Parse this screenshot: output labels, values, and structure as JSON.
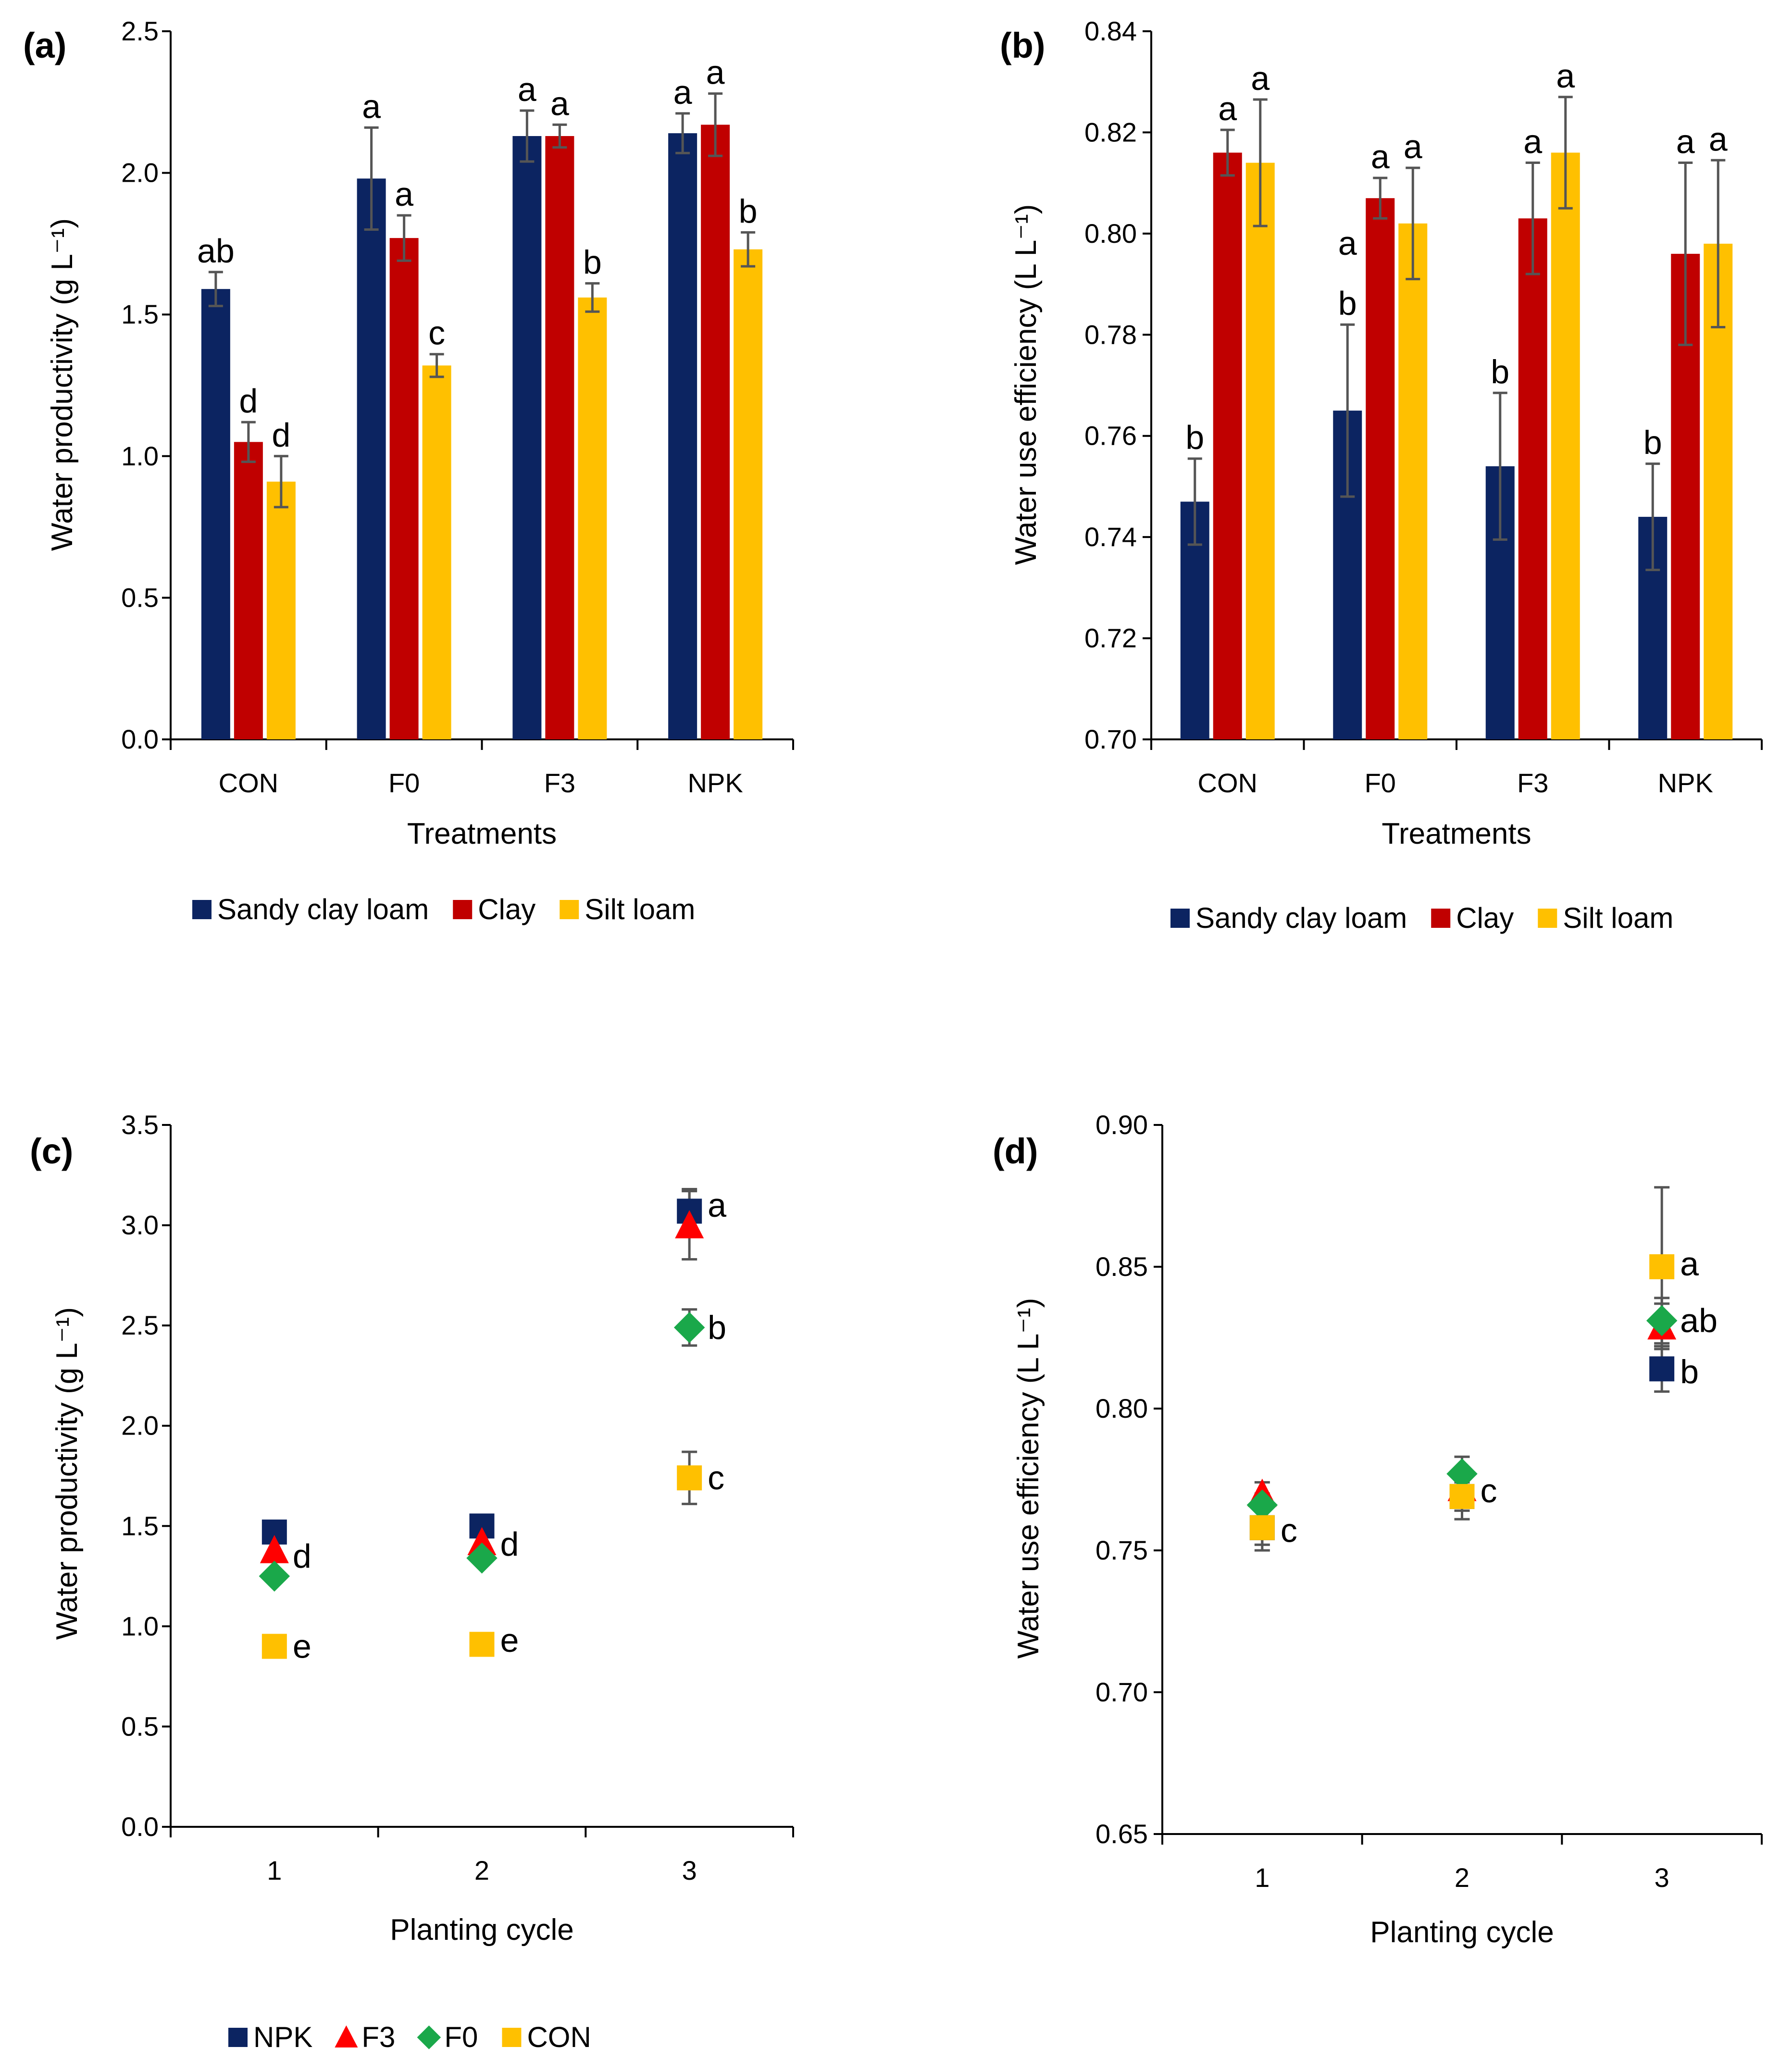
{
  "colors": {
    "sandy_clay_loam": "#0c2461",
    "clay": "#c00000",
    "silt_loam": "#ffc000",
    "npk": "#0c2461",
    "f3": "#ff0000",
    "f0": "#1aa84a",
    "con": "#ffc000",
    "axis": "#000000",
    "error_bar": "#555555"
  },
  "chart_data": [
    {
      "id": "a",
      "panel_label": "(a)",
      "type": "bar",
      "xlabel": "Treatments",
      "ylabel": "Water productivity (g L⁻¹)",
      "ylim": [
        0,
        2.5
      ],
      "yticks": [
        "0.0",
        "0.5",
        "1.0",
        "1.5",
        "2.0",
        "2.5"
      ],
      "categories": [
        "CON",
        "F0",
        "F3",
        "NPK"
      ],
      "series": [
        {
          "name": "Sandy clay loam",
          "values": [
            1.59,
            1.98,
            2.13,
            2.14
          ],
          "errors": [
            0.06,
            0.18,
            0.09,
            0.07
          ],
          "letters": [
            "ab",
            "a",
            "a",
            "a"
          ]
        },
        {
          "name": "Clay",
          "values": [
            1.05,
            1.77,
            2.13,
            2.17
          ],
          "errors": [
            0.07,
            0.08,
            0.04,
            0.11
          ],
          "letters": [
            "d",
            "a",
            "a",
            "a"
          ]
        },
        {
          "name": "Silt loam",
          "values": [
            0.91,
            1.32,
            1.56,
            1.73
          ],
          "errors": [
            0.09,
            0.04,
            0.05,
            0.06
          ],
          "letters": [
            "d",
            "c",
            "b",
            "b"
          ]
        }
      ],
      "legend": [
        "Sandy clay loam",
        "Clay",
        "Silt loam"
      ],
      "legend_position": "bottom"
    },
    {
      "id": "b",
      "panel_label": "(b)",
      "type": "bar",
      "xlabel": "Treatments",
      "ylabel": "Water use efficiency (L L⁻¹)",
      "ylim": [
        0.7,
        0.84
      ],
      "yticks": [
        "0.70",
        "0.72",
        "0.74",
        "0.76",
        "0.78",
        "0.80",
        "0.82",
        "0.84"
      ],
      "categories": [
        "CON",
        "F0",
        "F3",
        "NPK"
      ],
      "series": [
        {
          "name": "Sandy clay loam",
          "values": [
            0.747,
            0.765,
            0.754,
            0.744
          ],
          "errors": [
            0.0085,
            0.017,
            0.0145,
            0.0105
          ],
          "letters": [
            "b",
            "a b",
            "b",
            "b"
          ]
        },
        {
          "name": "Clay",
          "values": [
            0.816,
            0.807,
            0.803,
            0.796
          ],
          "errors": [
            0.0045,
            0.004,
            0.011,
            0.018
          ],
          "letters": [
            "a",
            "a",
            "a",
            "a"
          ]
        },
        {
          "name": "Silt loam",
          "values": [
            0.814,
            0.802,
            0.816,
            0.798
          ],
          "errors": [
            0.0125,
            0.011,
            0.011,
            0.0165
          ],
          "letters": [
            "a",
            "a",
            "a",
            "a"
          ]
        }
      ],
      "legend": [
        "Sandy clay loam",
        "Clay",
        "Silt loam"
      ],
      "legend_position": "bottom"
    },
    {
      "id": "c",
      "panel_label": "(c)",
      "type": "scatter",
      "xlabel": "Planting cycle",
      "ylabel": "Water productivity (g L⁻¹)",
      "ylim": [
        0,
        3.5
      ],
      "yticks": [
        "0.0",
        "0.5",
        "1.0",
        "1.5",
        "2.0",
        "2.5",
        "3.0",
        "3.5"
      ],
      "categories": [
        "1",
        "2",
        "3"
      ],
      "series": [
        {
          "name": "NPK",
          "marker": "square",
          "values": [
            1.47,
            1.5,
            3.07
          ],
          "errors": [
            0.04,
            0.05,
            0.11
          ]
        },
        {
          "name": "F3",
          "marker": "triangle",
          "values": [
            1.38,
            1.42,
            3.0
          ],
          "errors": [
            0.04,
            0.04,
            0.17
          ]
        },
        {
          "name": "F0",
          "marker": "diamond",
          "values": [
            1.25,
            1.34,
            2.49
          ],
          "errors": [
            0.03,
            0.03,
            0.09
          ]
        },
        {
          "name": "CON",
          "marker": "square",
          "values": [
            0.9,
            0.91,
            1.74
          ],
          "errors": [
            0.05,
            0.03,
            0.13
          ]
        }
      ],
      "annotations": [
        {
          "x_index": 0,
          "y": 1.35,
          "text": "d"
        },
        {
          "x_index": 0,
          "y": 0.9,
          "text": "e"
        },
        {
          "x_index": 1,
          "y": 1.41,
          "text": "d"
        },
        {
          "x_index": 1,
          "y": 0.93,
          "text": "e"
        },
        {
          "x_index": 2,
          "y": 3.1,
          "text": "a"
        },
        {
          "x_index": 2,
          "y": 2.49,
          "text": "b"
        },
        {
          "x_index": 2,
          "y": 1.74,
          "text": "c"
        }
      ],
      "legend": [
        "NPK",
        "F3",
        "F0",
        "CON"
      ],
      "legend_position": "bottom"
    },
    {
      "id": "d",
      "panel_label": "(d)",
      "type": "scatter",
      "xlabel": "Planting cycle",
      "ylabel": "Water use efficiency (L L⁻¹)",
      "ylim": [
        0.65,
        0.9
      ],
      "yticks": [
        "0.65",
        "0.70",
        "0.75",
        "0.80",
        "0.85",
        "0.90"
      ],
      "categories": [
        "1",
        "2",
        "3"
      ],
      "series": [
        {
          "name": "NPK",
          "marker": "square",
          "values": [
            0.758,
            0.769,
            0.814
          ],
          "errors": [
            0.006,
            0.005,
            0.008
          ]
        },
        {
          "name": "F3",
          "marker": "triangle",
          "values": [
            0.77,
            0.772,
            0.829
          ],
          "errors": [
            0.004,
            0.005,
            0.008
          ]
        },
        {
          "name": "F0",
          "marker": "diamond",
          "values": [
            0.766,
            0.777,
            0.831
          ],
          "errors": [
            0.004,
            0.006,
            0.008
          ]
        },
        {
          "name": "CON",
          "marker": "square",
          "values": [
            0.758,
            0.769,
            0.85
          ],
          "errors": [
            0.008,
            0.008,
            0.028
          ]
        }
      ],
      "annotations": [
        {
          "x_index": 0,
          "y": 0.757,
          "text": "c"
        },
        {
          "x_index": 1,
          "y": 0.771,
          "text": "c"
        },
        {
          "x_index": 2,
          "y": 0.851,
          "text": "a"
        },
        {
          "x_index": 2,
          "y": 0.831,
          "text": "ab"
        },
        {
          "x_index": 2,
          "y": 0.813,
          "text": "b"
        }
      ],
      "legend": [],
      "legend_position": "none"
    }
  ]
}
